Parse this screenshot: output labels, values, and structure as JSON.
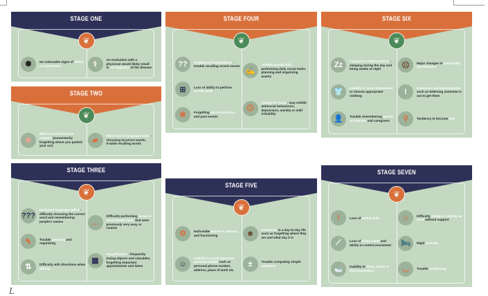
{
  "colors": {
    "navy": "#2e3157",
    "orange": "#d9703c",
    "green_circle": "#4b8b5a",
    "card_bg": "#c4d8c2",
    "icon_bg": "#9db29a"
  },
  "stages": [
    {
      "id": "one",
      "title": "STAGE ONE",
      "header_color": "#2e3157",
      "circle_color": "#d9703c",
      "left": [
        {
          "icon": "tangled-brain-icon",
          "glyph": "✺",
          "glyph_color": "#222",
          "segments": [
            {
              "t": "No noticeable signs of "
            },
            {
              "t": "deficit or impairment",
              "hl": true
            }
          ]
        }
      ],
      "right": [
        {
          "icon": "stethoscope-icon",
          "glyph": "⚕",
          "glyph_color": "#f3efe6",
          "segments": [
            {
              "t": "An evaluation with a physician would likely result in "
            },
            {
              "t": "no diagnosis",
              "hl": true
            },
            {
              "t": " of the disease"
            }
          ]
        }
      ]
    },
    {
      "id": "two",
      "title": "STAGE TWO",
      "header_color": "#d9703c",
      "circle_color": "#4b8b5a",
      "left": [
        {
          "icon": "brain-x-icon",
          "glyph": "❀",
          "glyph_color": "#e9a58e",
          "segments": [
            {
              "t": "Mild loss of short-term memory",
              "hl": true
            },
            {
              "t": " (momentarily forgetting where you parked your car)"
            }
          ]
        }
      ],
      "right": [
        {
          "icon": "map-x-icon",
          "glyph": "▰",
          "glyph_color": "#d9703c",
          "segments": [
            {
              "t": "Minor loss of language skills",
              "hl": true
            },
            {
              "t": " - choosing incorrect words, trouble recalling words"
            }
          ]
        }
      ]
    },
    {
      "id": "three",
      "title": "STAGE THREE",
      "header_color": "#2e3157",
      "circle_color": "#d9703c",
      "left": [
        {
          "icon": "question-bubble-icon",
          "glyph": "???",
          "glyph_color": "#2e3157",
          "segments": [
            {
              "t": "Increased language deficit",
              "hl": true
            },
            {
              "t": " - difficulty choosing the correct word and remembering people's names"
            }
          ]
        },
        {
          "icon": "planner-icon",
          "glyph": "✎",
          "glyph_color": "#d9703c",
          "segments": [
            {
              "t": "Trouble "
            },
            {
              "t": "planning",
              "hl": true
            },
            {
              "t": " and organizing"
            }
          ]
        },
        {
          "icon": "split-arrows-icon",
          "glyph": "⇅",
          "glyph_color": "#fff",
          "segments": [
            {
              "t": "Difficulty with directions when "
            },
            {
              "t": "driving",
              "hl": true
            }
          ]
        }
      ],
      "right": [
        {
          "icon": "chat-bubble-icon",
          "glyph": "…",
          "glyph_color": "#d9703c",
          "segments": [
            {
              "t": "Difficulty performing "
            },
            {
              "t": "social or work-related tasks",
              "hl": true
            },
            {
              "t": " that were previously very easy or routine"
            }
          ]
        },
        {
          "icon": "calendar-icon",
          "glyph": "▦",
          "glyph_color": "#2e3157",
          "segments": [
            {
              "t": "Forgetfulness",
              "hl": true
            },
            {
              "t": " - frequently losing objects and valuables, forgetting important appointments and dates"
            }
          ]
        }
      ]
    },
    {
      "id": "four",
      "title": "STAGE FOUR",
      "header_color": "#d9703c",
      "circle_color": "#4b8b5a",
      "left": [
        {
          "icon": "question-marks-icon",
          "glyph": "??",
          "glyph_color": "#fff",
          "segments": [
            {
              "t": "Heightened forgetfulness",
              "hl": true
            },
            {
              "t": " - trouble recalling recent events"
            }
          ]
        },
        {
          "icon": "calculator-icon",
          "glyph": "⊞",
          "glyph_color": "#2e3157",
          "segments": [
            {
              "t": "Loss of ability to perform "
            },
            {
              "t": "mental math",
              "hl": true
            }
          ]
        },
        {
          "icon": "brain-icon",
          "glyph": "❀",
          "glyph_color": "#d9703c",
          "segments": [
            {
              "t": "Forgetting "
            },
            {
              "t": "personal history",
              "hl": true
            },
            {
              "t": " and past events"
            }
          ]
        }
      ],
      "right": [
        {
          "icon": "cheque-icon",
          "glyph": "✍",
          "glyph_color": "#fff",
          "segments": [
            {
              "t": "Trouble paying bills,",
              "hl": true
            },
            {
              "t": " performing daily social tasks, planning and organizing events"
            }
          ]
        },
        {
          "icon": "sad-face-icon",
          "glyph": "☹",
          "glyph_color": "#d9703c",
          "segments": [
            {
              "t": "Change in mood",
              "hl": true
            },
            {
              "t": " - may exhibit antisocial behaviours, depression, anxiety or mild irritability"
            }
          ]
        }
      ]
    },
    {
      "id": "five",
      "title": "STAGE FIVE",
      "header_color": "#2e3157",
      "circle_color": "#d9703c",
      "left": [
        {
          "icon": "gears-icon",
          "glyph": "⚙",
          "glyph_color": "#d9703c",
          "segments": [
            {
              "t": "Noticeable "
            },
            {
              "t": "lapses in memory",
              "hl": true
            },
            {
              "t": " and functioning"
            }
          ]
        },
        {
          "icon": "confused-man-icon",
          "glyph": "☺",
          "glyph_color": "#2e3157",
          "segments": [
            {
              "t": "Inability to recall important personal details",
              "hl": true
            },
            {
              "t": " such as personal phone number, address, place of work etc"
            }
          ]
        }
      ],
      "right": [
        {
          "icon": "confused-face-icon",
          "glyph": "☻",
          "glyph_color": "#6b4a2e",
          "segments": [
            {
              "t": "Confusion",
              "hl": true
            },
            {
              "t": " in a day-to-day life such as forgetting where they are and what day it is"
            }
          ]
        },
        {
          "icon": "plus-minus-icon",
          "glyph": "±",
          "glyph_color": "#fff",
          "segments": [
            {
              "t": "Trouble computing simple "
            },
            {
              "t": "arithmetic",
              "hl": true
            }
          ]
        }
      ]
    },
    {
      "id": "six",
      "title": "STAGE SIX",
      "header_color": "#d9703c",
      "circle_color": "#4b8b5a",
      "left": [
        {
          "icon": "sleep-zz-icon",
          "glyph": "Zz",
          "glyph_color": "#fff",
          "segments": [
            {
              "t": "Changes in sleep patterns",
              "hl": true
            },
            {
              "t": " - sleeping during the day and being awake at night"
            }
          ]
        },
        {
          "icon": "shirt-x-icon",
          "glyph": "👕",
          "glyph_color": "#d9703c",
          "segments": [
            {
              "t": "Inability to dress themselves",
              "hl": true
            },
            {
              "t": " or choose appropriate clothing"
            }
          ]
        },
        {
          "icon": "person-question-icon",
          "glyph": "👤",
          "glyph_color": "#2e3157",
          "segments": [
            {
              "t": "Trouble remembering "
            },
            {
              "t": "names of relatives",
              "hl": true
            },
            {
              "t": " and caregivers"
            }
          ]
        }
      ],
      "right": [
        {
          "icon": "worried-woman-icon",
          "glyph": "☹",
          "glyph_color": "#6b4a2e",
          "segments": [
            {
              "t": "Major changes in "
            },
            {
              "t": "personality and behavior",
              "hl": true
            }
          ]
        },
        {
          "icon": "exclamation-icon",
          "glyph": "!",
          "glyph_color": "#fff",
          "segments": [
            {
              "t": "Delusions and hallucinations",
              "hl": true
            },
            {
              "t": " such as believing someone is out to get them"
            }
          ]
        },
        {
          "icon": "magnifier-icon",
          "glyph": "⚲",
          "glyph_color": "#d9703c",
          "segments": [
            {
              "t": "Tendency to become "
            },
            {
              "t": "lost",
              "hl": true
            }
          ]
        }
      ]
    },
    {
      "id": "seven",
      "title": "STAGE SEVEN",
      "header_color": "#2e3157",
      "circle_color": "#d9703c",
      "left": [
        {
          "icon": "alert-bubble-icon",
          "glyph": "!",
          "glyph_color": "#d9703c",
          "segments": [
            {
              "t": "Loss of "
            },
            {
              "t": "verbal skills",
              "hl": true
            }
          ]
        },
        {
          "icon": "muscle-icon",
          "glyph": "⟋",
          "glyph_color": "#fff",
          "segments": [
            {
              "t": "Loss of "
            },
            {
              "t": "motor skills",
              "hl": true
            },
            {
              "t": " and ability to control movement"
            }
          ]
        },
        {
          "icon": "bathtub-icon",
          "glyph": "🛁",
          "glyph_color": "#2e3157",
          "segments": [
            {
              "t": "Inability to "
            },
            {
              "t": "dress, bathe or feed themselves",
              "hl": true
            }
          ]
        }
      ],
      "right": [
        {
          "icon": "caregiver-icon",
          "glyph": "☺",
          "glyph_color": "#d9703c",
          "segments": [
            {
              "t": "Difficulty "
            },
            {
              "t": "sitting or holding up head",
              "hl": true
            },
            {
              "t": " without support"
            }
          ]
        },
        {
          "icon": "patient-bed-icon",
          "glyph": "🛏",
          "glyph_color": "#2e6a7a",
          "segments": [
            {
              "t": "Rigid "
            },
            {
              "t": "muscles",
              "hl": true
            }
          ]
        },
        {
          "icon": "tongue-icon",
          "glyph": "◡",
          "glyph_color": "#d9703c",
          "segments": [
            {
              "t": "Trouble "
            },
            {
              "t": "swallowing",
              "hl": true
            }
          ]
        }
      ]
    }
  ]
}
